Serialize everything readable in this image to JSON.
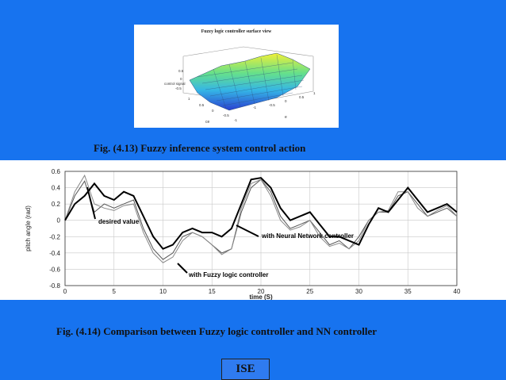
{
  "slide": {
    "background": "#1773ef"
  },
  "figure1": {
    "title": "Fuzzy logic controller surface view",
    "zlabel": "control signal",
    "xlabel": "ce",
    "ylabel": "e",
    "z_ticks": [
      "0.5",
      "0",
      "-0.5"
    ],
    "x_ticks": [
      "1",
      "0.5",
      "0",
      "-0.5",
      "-1"
    ],
    "y_ticks": [
      "-1",
      "-0.5",
      "0",
      "0.5",
      "1"
    ]
  },
  "captions": {
    "fig413": "Fig. (4.13) Fuzzy inference system control action",
    "fig414": "Fig. (4.14) Comparison between Fuzzy logic controller and NN controller"
  },
  "footer": {
    "label": "ISE"
  },
  "chart_data": [
    {
      "type": "surface",
      "title": "Fuzzy logic controller surface view",
      "xlabel": "ce",
      "ylabel": "e",
      "zlabel": "control signal",
      "xlim": [
        -1,
        1
      ],
      "ylim": [
        -1,
        1
      ],
      "zlim": [
        -0.5,
        0.5
      ]
    },
    {
      "type": "line",
      "xlabel": "time (S)",
      "ylabel": "pitch angle (rad)",
      "xlim": [
        0,
        40
      ],
      "ylim": [
        -0.8,
        0.6
      ],
      "xticks": [
        "0",
        "5",
        "10",
        "15",
        "20",
        "25",
        "30",
        "35",
        "40"
      ],
      "yticks": [
        "0.6",
        "0.4",
        "0.2",
        "0",
        "-0.2",
        "-0.4",
        "-0.6",
        "-0.8"
      ],
      "grid": true,
      "annotations": [
        "desired value",
        "with Neural Network controller",
        "with Fuzzy logic controller"
      ],
      "series": [
        {
          "name": "desired value",
          "color": "#555555",
          "x": [
            0,
            1,
            2,
            3,
            4,
            5,
            6,
            7,
            8,
            9,
            10,
            11,
            12,
            13,
            14,
            15,
            16,
            17,
            18,
            19,
            20,
            21,
            22,
            23,
            24,
            25,
            26,
            27,
            28,
            29,
            30,
            31,
            32,
            33,
            34,
            35,
            36,
            37,
            38,
            39,
            40
          ],
          "y": [
            0.0,
            0.3,
            0.48,
            0.1,
            0.2,
            0.15,
            0.2,
            0.25,
            -0.1,
            -0.35,
            -0.48,
            -0.4,
            -0.2,
            -0.15,
            -0.2,
            -0.3,
            -0.4,
            -0.35,
            0.1,
            0.4,
            0.5,
            0.35,
            0.05,
            -0.1,
            -0.05,
            0.0,
            -0.15,
            -0.3,
            -0.25,
            -0.35,
            -0.2,
            0.0,
            0.1,
            0.1,
            0.3,
            0.35,
            0.2,
            0.05,
            0.1,
            0.15,
            0.05
          ]
        },
        {
          "name": "with Fuzzy logic controller",
          "color": "#888888",
          "x": [
            0,
            1,
            2,
            3,
            4,
            5,
            6,
            7,
            8,
            9,
            10,
            11,
            12,
            13,
            14,
            15,
            16,
            17,
            18,
            19,
            20,
            21,
            22,
            23,
            24,
            25,
            26,
            27,
            28,
            29,
            30,
            31,
            32,
            33,
            34,
            35,
            36,
            37,
            38,
            39,
            40
          ],
          "y": [
            0.0,
            0.35,
            0.55,
            0.2,
            0.15,
            0.12,
            0.18,
            0.2,
            -0.15,
            -0.4,
            -0.52,
            -0.45,
            -0.25,
            -0.15,
            -0.2,
            -0.3,
            -0.42,
            -0.35,
            0.15,
            0.45,
            0.5,
            0.3,
            0.0,
            -0.12,
            -0.08,
            0.0,
            -0.2,
            -0.32,
            -0.28,
            -0.35,
            -0.25,
            0.0,
            0.1,
            0.12,
            0.35,
            0.35,
            0.15,
            0.05,
            0.12,
            0.18,
            0.05
          ]
        },
        {
          "name": "with Neural Network controller",
          "color": "#000000",
          "x": [
            0,
            1,
            2,
            3,
            4,
            5,
            6,
            7,
            8,
            9,
            10,
            11,
            12,
            13,
            14,
            15,
            16,
            17,
            18,
            19,
            20,
            21,
            22,
            23,
            24,
            25,
            26,
            27,
            28,
            29,
            30,
            31,
            32,
            33,
            34,
            35,
            36,
            37,
            38,
            39,
            40
          ],
          "y": [
            0.0,
            0.2,
            0.3,
            0.45,
            0.3,
            0.25,
            0.35,
            0.3,
            0.05,
            -0.2,
            -0.35,
            -0.3,
            -0.15,
            -0.1,
            -0.15,
            -0.15,
            -0.2,
            -0.1,
            0.2,
            0.5,
            0.52,
            0.4,
            0.15,
            0.0,
            0.05,
            0.1,
            -0.05,
            -0.2,
            -0.2,
            -0.25,
            -0.3,
            -0.05,
            0.15,
            0.1,
            0.25,
            0.4,
            0.25,
            0.1,
            0.15,
            0.2,
            0.1
          ]
        }
      ]
    }
  ]
}
